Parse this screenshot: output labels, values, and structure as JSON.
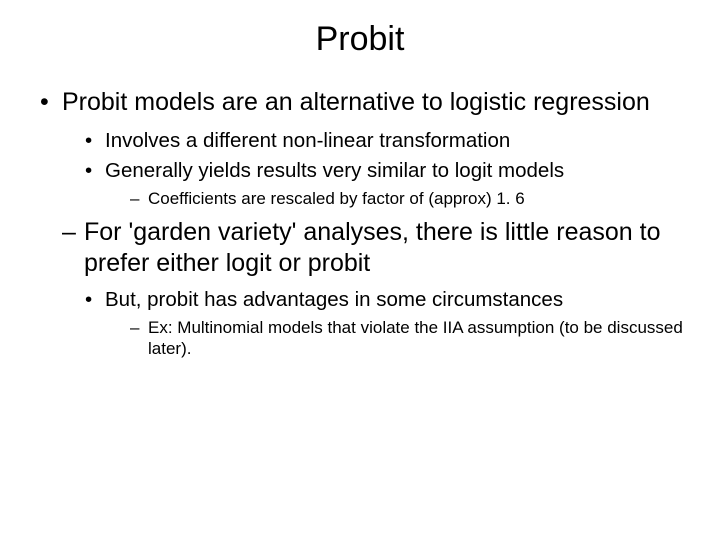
{
  "title": "Probit",
  "bullets": {
    "main": "Probit models are an alternative to logistic regression",
    "sub1": "Involves a different non-linear transformation",
    "sub2": "Generally yields results very similar to logit models",
    "sub2a": "Coefficients are rescaled by factor of (approx) 1. 6",
    "sub3": "For 'garden variety' analyses, there is little reason to prefer either logit or probit",
    "sub3a": "But, probit has advantages in some circumstances",
    "sub3a1": "Ex:  Multinomial models that violate the IIA assumption (to be discussed later)."
  }
}
